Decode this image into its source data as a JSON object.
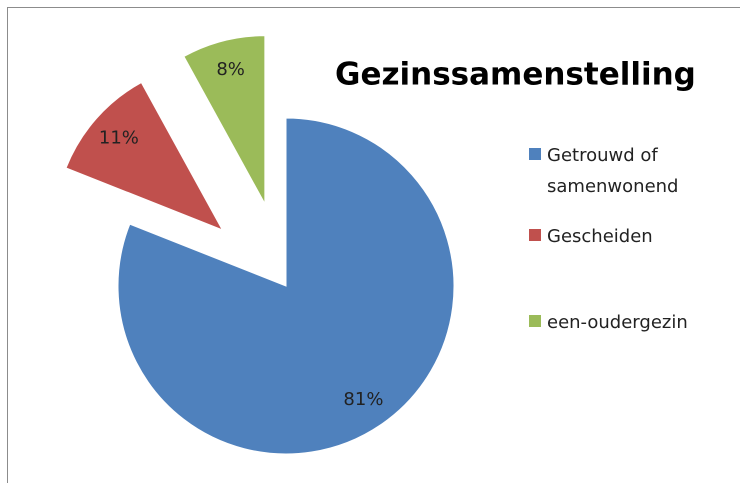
{
  "chart_data": {
    "type": "pie",
    "title": "Gezinssamenstelling",
    "categories": [
      "Getrouwd of samenwonend",
      "Gescheiden",
      "een-oudergezin"
    ],
    "values": [
      81,
      11,
      8
    ],
    "value_labels": [
      "81%",
      "11%",
      "8%"
    ],
    "colors": [
      "#4f81bd",
      "#c0504d",
      "#9bbb59"
    ],
    "legend": "right"
  }
}
